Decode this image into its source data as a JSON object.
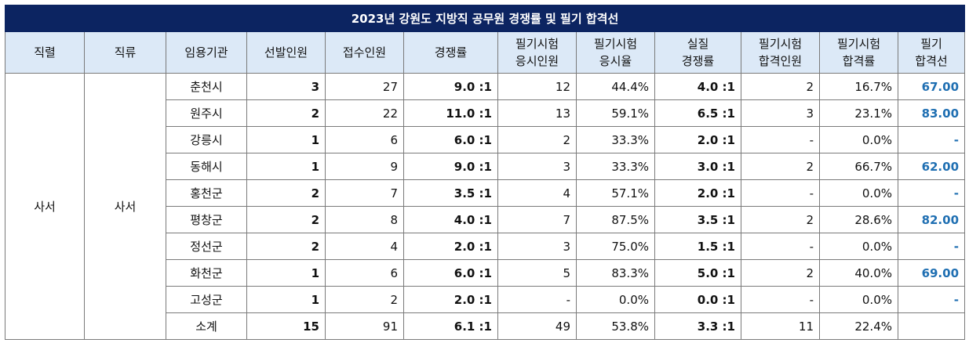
{
  "title": "2023년 강원도 지방직 공무원 경쟁률 및 필기 합격선",
  "headers": [
    "직렬",
    "직류",
    "임용기관",
    "선발인원",
    "접수인원",
    "경쟁률",
    "필기시험\n응시인원",
    "필기시험\n응시율",
    "실질\n경쟁률",
    "필기시험\n합격인원",
    "필기시험\n합격률",
    "필기\n합격선"
  ],
  "group": {
    "series": "사서",
    "branch": "사서"
  },
  "rows": [
    {
      "agency": "춘천시",
      "selected": "3",
      "applicants": "27",
      "ratio": "9.0 :1",
      "examinees": "12",
      "exam_rate": "44.4%",
      "real_ratio": "4.0 :1",
      "passed": "2",
      "pass_rate": "16.7%",
      "cutoff": "67.00"
    },
    {
      "agency": "원주시",
      "selected": "2",
      "applicants": "22",
      "ratio": "11.0 :1",
      "examinees": "13",
      "exam_rate": "59.1%",
      "real_ratio": "6.5 :1",
      "passed": "3",
      "pass_rate": "23.1%",
      "cutoff": "83.00"
    },
    {
      "agency": "강릉시",
      "selected": "1",
      "applicants": "6",
      "ratio": "6.0 :1",
      "examinees": "2",
      "exam_rate": "33.3%",
      "real_ratio": "2.0 :1",
      "passed": "-",
      "pass_rate": "0.0%",
      "cutoff": "-"
    },
    {
      "agency": "동해시",
      "selected": "1",
      "applicants": "9",
      "ratio": "9.0 :1",
      "examinees": "3",
      "exam_rate": "33.3%",
      "real_ratio": "3.0 :1",
      "passed": "2",
      "pass_rate": "66.7%",
      "cutoff": "62.00"
    },
    {
      "agency": "홍천군",
      "selected": "2",
      "applicants": "7",
      "ratio": "3.5 :1",
      "examinees": "4",
      "exam_rate": "57.1%",
      "real_ratio": "2.0 :1",
      "passed": "-",
      "pass_rate": "0.0%",
      "cutoff": "-"
    },
    {
      "agency": "평창군",
      "selected": "2",
      "applicants": "8",
      "ratio": "4.0 :1",
      "examinees": "7",
      "exam_rate": "87.5%",
      "real_ratio": "3.5 :1",
      "passed": "2",
      "pass_rate": "28.6%",
      "cutoff": "82.00"
    },
    {
      "agency": "정선군",
      "selected": "2",
      "applicants": "4",
      "ratio": "2.0 :1",
      "examinees": "3",
      "exam_rate": "75.0%",
      "real_ratio": "1.5 :1",
      "passed": "-",
      "pass_rate": "0.0%",
      "cutoff": "-"
    },
    {
      "agency": "화천군",
      "selected": "1",
      "applicants": "6",
      "ratio": "6.0 :1",
      "examinees": "5",
      "exam_rate": "83.3%",
      "real_ratio": "5.0 :1",
      "passed": "2",
      "pass_rate": "40.0%",
      "cutoff": "69.00"
    },
    {
      "agency": "고성군",
      "selected": "1",
      "applicants": "2",
      "ratio": "2.0 :1",
      "examinees": "-",
      "exam_rate": "0.0%",
      "real_ratio": "0.0 :1",
      "passed": "-",
      "pass_rate": "0.0%",
      "cutoff": "-"
    }
  ],
  "subtotal": {
    "agency": "소계",
    "selected": "15",
    "applicants": "91",
    "ratio": "6.1 :1",
    "examinees": "49",
    "exam_rate": "53.8%",
    "real_ratio": "3.3 :1",
    "passed": "11",
    "pass_rate": "22.4%",
    "cutoff": ""
  },
  "colors": {
    "title_bg": "#0c2461",
    "header_bg": "#dce9f7",
    "cutoff_text": "#1f6fb2"
  }
}
